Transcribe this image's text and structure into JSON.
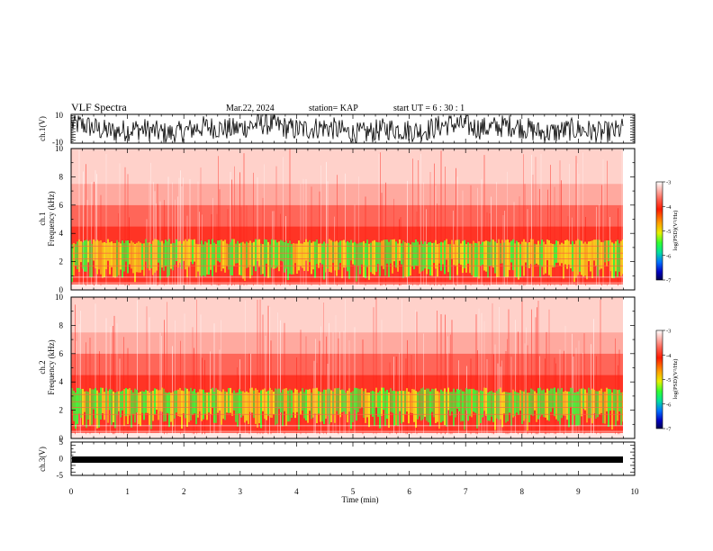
{
  "header": {
    "title": "VLF Spectra",
    "date": "Mar.22, 2024",
    "station": "station= KAP",
    "start": "start  UT =   6 : 30 : 1"
  },
  "chart_data": [
    {
      "type": "line",
      "ylabel": "ch.1(V)",
      "ylim": [
        -10,
        10
      ],
      "yticks": [
        "10",
        "-10"
      ],
      "xlim": [
        0,
        10
      ]
    },
    {
      "type": "heatmap",
      "ylabel": "Frequency (kHz)",
      "chlabel": "ch.1",
      "ylim": [
        0,
        10
      ],
      "yticks": [
        "0",
        "2",
        "4",
        "6",
        "8",
        "10"
      ],
      "xlim": [
        0,
        10
      ],
      "colorbar": {
        "label": "log(PSD)(V²/Hz)",
        "range": [
          -7,
          -3
        ],
        "ticks": [
          "-3",
          "-4",
          "-5",
          "-6",
          "-7"
        ]
      }
    },
    {
      "type": "heatmap",
      "ylabel": "Frequency (kHz)",
      "chlabel": "ch.2",
      "ylim": [
        0,
        10
      ],
      "yticks": [
        "0",
        "2",
        "4",
        "6",
        "8",
        "10"
      ],
      "xlim": [
        0,
        10
      ],
      "colorbar": {
        "label": "log(PSD)(V²/Hz)",
        "range": [
          -7,
          -3
        ],
        "ticks": [
          "-3",
          "-4",
          "-5",
          "-6",
          "-7"
        ]
      }
    },
    {
      "type": "line",
      "ylabel": "ch.3(V)",
      "ylim": [
        -5,
        5
      ],
      "yticks": [
        "5",
        "0",
        "-5"
      ],
      "xlim": [
        0,
        10
      ],
      "xlabel": "Time (min)",
      "xticks": [
        "0",
        "1",
        "2",
        "3",
        "4",
        "5",
        "6",
        "7",
        "8",
        "9",
        "10"
      ]
    }
  ],
  "colors": {
    "waveform": "#000000",
    "spec_high": "#ff3a2a",
    "spec_mid": "#f5e31a",
    "spec_low": "#39ff3a",
    "spec_bg": "#ffe9e6"
  }
}
